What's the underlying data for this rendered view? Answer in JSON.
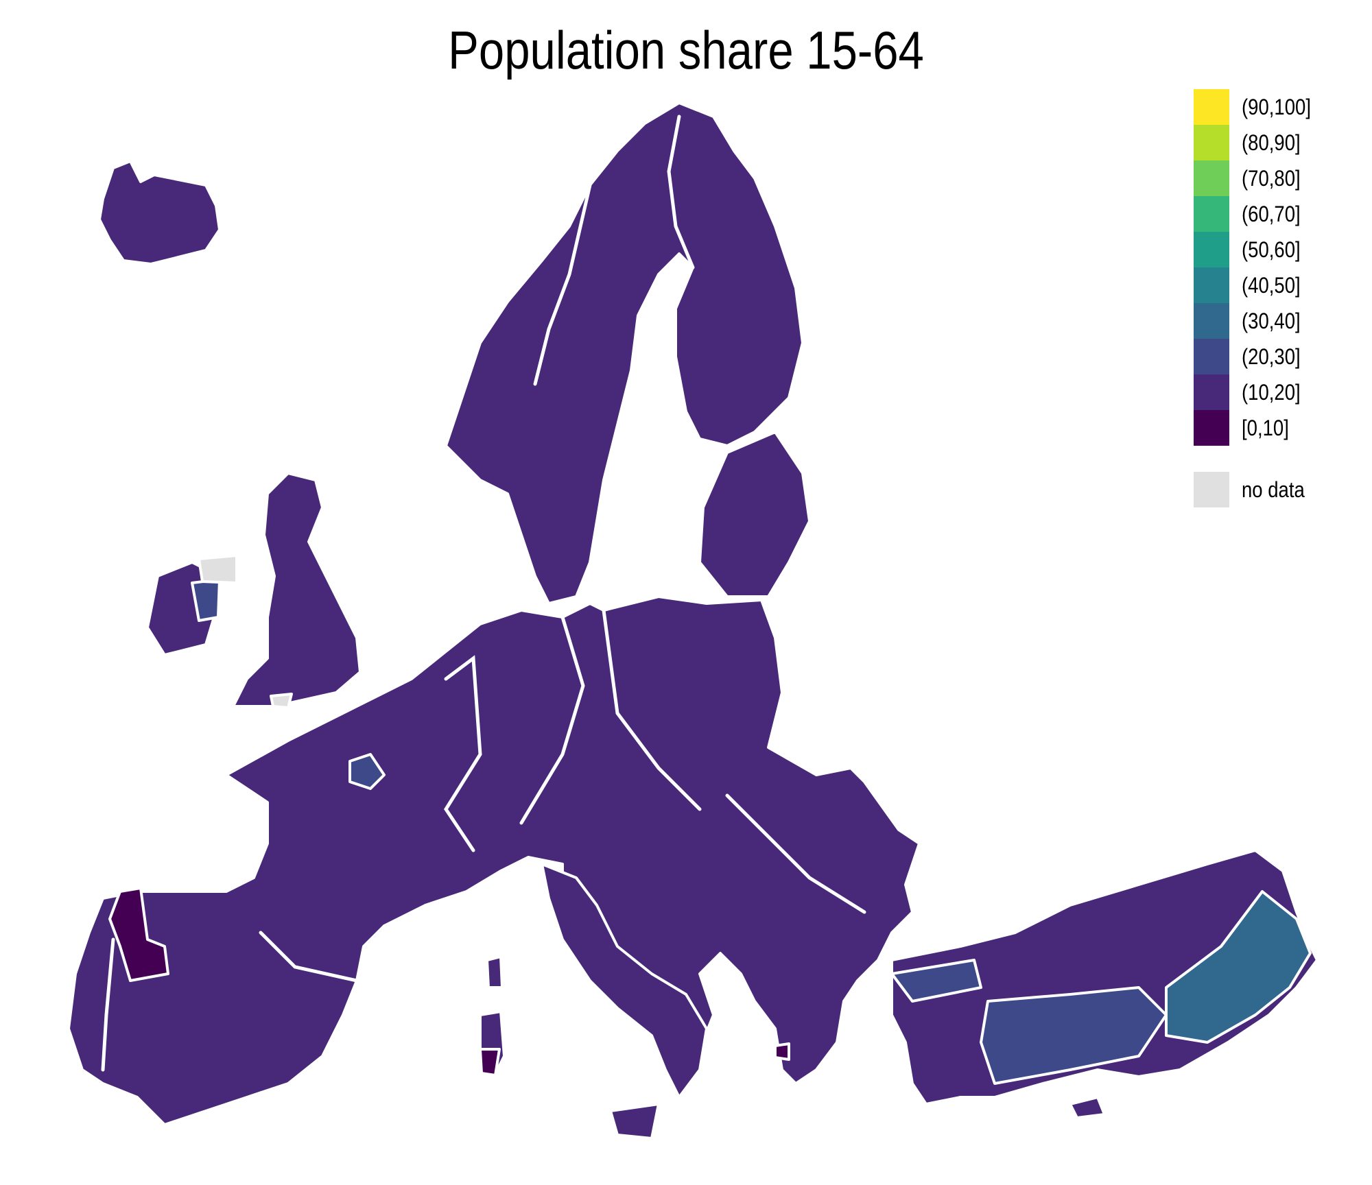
{
  "title": "Population share 15-64",
  "legend": {
    "classes": [
      {
        "label": "(90,100]",
        "color": "#fde725"
      },
      {
        "label": "(80,90]",
        "color": "#b5de2b"
      },
      {
        "label": "(70,80]",
        "color": "#6ece58"
      },
      {
        "label": "(60,70]",
        "color": "#35b779"
      },
      {
        "label": "(50,60]",
        "color": "#1f9e89"
      },
      {
        "label": "(40,50]",
        "color": "#26828e"
      },
      {
        "label": "(30,40]",
        "color": "#31688e"
      },
      {
        "label": "(20,30]",
        "color": "#3e4989"
      },
      {
        "label": "(10,20]",
        "color": "#482878"
      },
      {
        "label": "[0,10]",
        "color": "#440154"
      }
    ],
    "no_data": {
      "label": "no data",
      "color": "#e0e0e0"
    }
  },
  "map": {
    "region": "Europe and Turkey",
    "dominant_class": "(10,20]",
    "regions_noted": [
      {
        "area": "Northern Ireland",
        "class": "no data"
      },
      {
        "area": "Southwest England",
        "class": "no data"
      },
      {
        "area": "Northwest Spain",
        "class": "[0,10]"
      },
      {
        "area": "Southern Sardinia",
        "class": "[0,10]"
      },
      {
        "area": "Northern Greece",
        "class": "[0,10]"
      },
      {
        "area": "Eastern Ireland",
        "class": "(20,30]"
      },
      {
        "area": "Paris region",
        "class": "(20,30]"
      },
      {
        "area": "Western Turkey",
        "class": "(20,30]"
      },
      {
        "area": "Southeast Turkey",
        "class": "(30,40]"
      }
    ]
  }
}
